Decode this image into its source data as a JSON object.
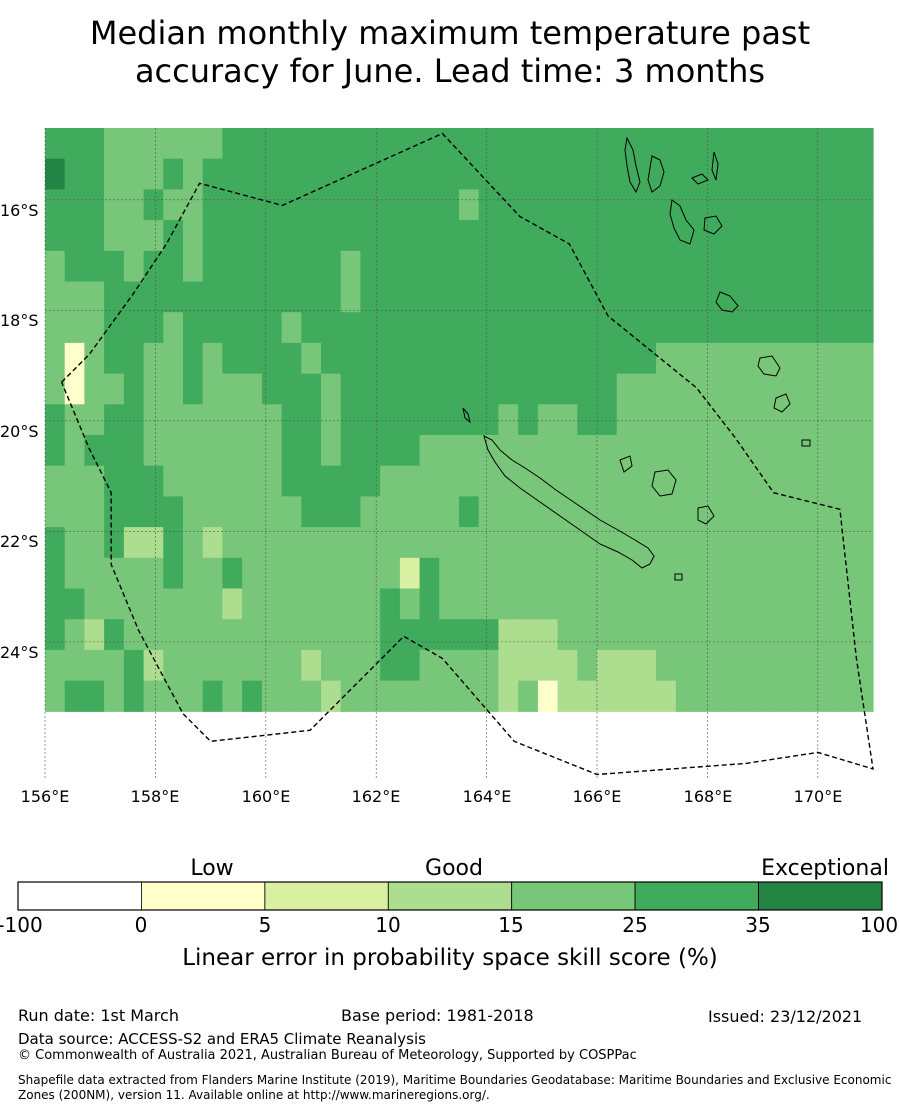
{
  "title": {
    "line1": "Median monthly maximum temperature past",
    "line2": "accuracy for June. Lead time: 3 months"
  },
  "map": {
    "lon_range": [
      156,
      171
    ],
    "lat_range": [
      -26.5,
      -14.7
    ],
    "lon_ticks": [
      "156°E",
      "158°E",
      "160°E",
      "162°E",
      "164°E",
      "166°E",
      "168°E",
      "170°E"
    ],
    "lat_ticks": [
      "16°S",
      "18°S",
      "20°S",
      "22°S",
      "24°S"
    ],
    "grid": true,
    "grid_cell_deg": 0.833,
    "skill_classes": [
      "0: <0% (white)",
      "1: 0-5 (light yellow)",
      "2: 5-10",
      "3: 10-15",
      "4: 15-25",
      "5: 25-35",
      "6: 35-100 (dark green)"
    ],
    "skill_grid": [
      "5655444445544555544",
      "5555544114444445445",
      "5555544444544444345",
      "4444555545555544544",
      "4444455555555344455",
      "4454555444455344434",
      "4545554444445554444",
      "4444455554444444444",
      "4555555444444344445",
      "5555555544444453444",
      "5555555544444444445",
      "5555555554444444444",
      "5555554555554444444",
      "5555555455555444434",
      "5555555544455444443",
      "5555445555555444444",
      "5555555555554444444",
      "5555555555544445554",
      "5555555555544424554",
      "5555555555444455544",
      "5555555555444444544",
      "5545555555445444544",
      "5555555555444444544",
      "5555555554444444333",
      "5555555555444444334",
      "5555555554444444331",
      "5555555554444444433",
      "5555555555444444443",
      "5555555555444444433",
      "5555555544444444433",
      "5555555544444444433",
      "5555555444444444443",
      "5555555444444444444",
      "5555555444444444444",
      "5555555444444444444",
      "5555555444444444444",
      "5555555444444444444",
      "5555555444444444444",
      "5555555444444444444",
      "5555555444444444444",
      "5555555444444444444",
      "5555555444444444444"
    ],
    "eez_boundary": [
      [
        156.3,
        -19.3
      ],
      [
        156.8,
        -18.8
      ],
      [
        157.6,
        -17.7
      ],
      [
        158.2,
        -16.8
      ],
      [
        158.8,
        -15.7
      ],
      [
        160.3,
        -16.1
      ],
      [
        163.2,
        -14.8
      ],
      [
        164.6,
        -16.3
      ],
      [
        165.5,
        -16.8
      ],
      [
        166.2,
        -18.1
      ],
      [
        167.8,
        -19.4
      ],
      [
        168.5,
        -20.3
      ],
      [
        169.2,
        -21.3
      ],
      [
        170.4,
        -21.6
      ],
      [
        170.7,
        -24.3
      ],
      [
        171.0,
        -26.3
      ],
      [
        170.0,
        -26.0
      ],
      [
        168.7,
        -26.2
      ],
      [
        166.0,
        -26.4
      ],
      [
        164.5,
        -25.8
      ],
      [
        163.2,
        -24.3
      ],
      [
        162.5,
        -23.9
      ],
      [
        160.8,
        -25.6
      ],
      [
        159.0,
        -25.8
      ],
      [
        158.5,
        -25.3
      ],
      [
        157.7,
        -23.8
      ],
      [
        157.2,
        -22.6
      ],
      [
        157.2,
        -21.3
      ],
      [
        156.8,
        -20.5
      ],
      [
        156.3,
        -19.3
      ]
    ]
  },
  "colorbar": {
    "categories": [
      "Low",
      "Good",
      "Exceptional"
    ],
    "ticks": [
      "-100",
      "0",
      "5",
      "10",
      "15",
      "25",
      "35",
      "100"
    ],
    "colors": [
      "#ffffff",
      "#ffffcc",
      "#d9f0a3",
      "#addd8e",
      "#78c679",
      "#41ab5d",
      "#238443"
    ],
    "label": "Linear error in probability space skill score (%)"
  },
  "footer": {
    "run_date": "Run date: 1st March",
    "base_period": "Base period: 1981-2018",
    "issued": "Issued: 23/12/2021",
    "data_source": "Data source: ACCESS-S2 and ERA5 Climate Reanalysis",
    "copyright": "© Commonwealth of Australia 2021, Australian Bureau of Meteorology, Supported by COSPPac",
    "shapefile": "Shapefile data extracted from Flanders Marine Institute (2019), Maritime Boundaries Geodatabase: Maritime Boundaries and Exclusive Economic Zones (200NM), version 11. Available online at http://www.marineregions.org/."
  }
}
